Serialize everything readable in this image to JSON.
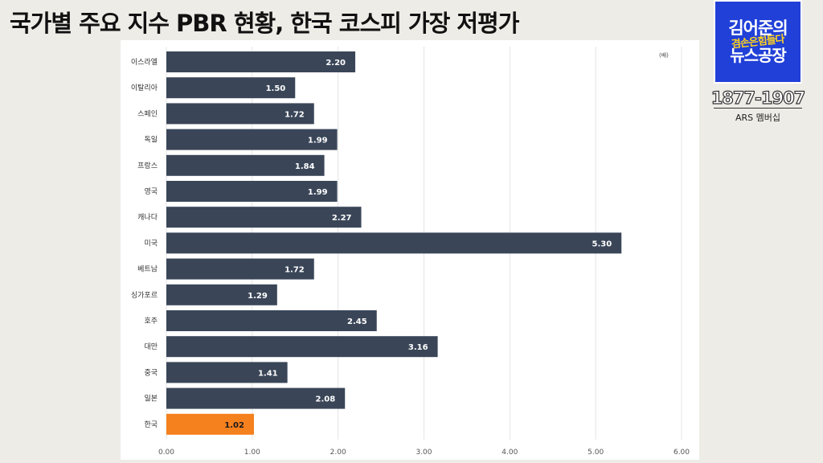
{
  "headline": "국가별 주요 지수 PBR 현황, 한국 코스피 가장 저평가",
  "logo": {
    "line1": "김어준의",
    "line2": "겸손은힘들다",
    "line3": "뉴스공장"
  },
  "broadcast": {
    "years": "1877-1907",
    "ars": "ARS 멤버십"
  },
  "chart_data": {
    "type": "bar",
    "orientation": "horizontal",
    "unit": "(배)",
    "categories": [
      "이스라엘",
      "이탈리아",
      "스페인",
      "독일",
      "프랑스",
      "영국",
      "캐나다",
      "미국",
      "베트남",
      "싱가포르",
      "호주",
      "대만",
      "중국",
      "일본",
      "한국"
    ],
    "values": [
      2.2,
      1.5,
      1.72,
      1.99,
      1.84,
      1.99,
      2.27,
      5.3,
      1.72,
      1.29,
      2.45,
      3.16,
      1.41,
      2.08,
      1.02
    ],
    "value_labels": [
      "2.20",
      "1.50",
      "1.72",
      "1.99",
      "1.84",
      "1.99",
      "2.27",
      "5.30",
      "1.72",
      "1.29",
      "2.45",
      "3.16",
      "1.41",
      "2.08",
      "1.02"
    ],
    "x_ticks": [
      "0.00",
      "1.00",
      "2.00",
      "3.00",
      "4.00",
      "5.00",
      "6.00"
    ],
    "xlim": [
      0,
      6
    ],
    "grid": true,
    "colors": {
      "bar": "#3a4658",
      "highlight": "#f5801e",
      "highlight_category": "한국"
    }
  }
}
